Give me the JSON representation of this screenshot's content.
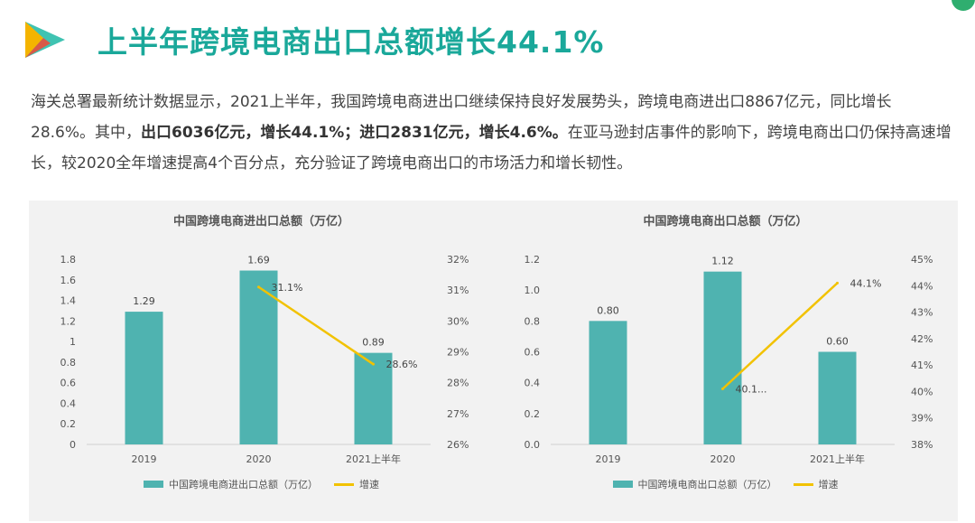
{
  "page": {
    "title": "上半年跨境电商出口总额增长44.1%",
    "paragraph": [
      {
        "text": "海关总署最新统计数据显示，2021上半年，我国跨境电商进出口继续保持良好发展势头，跨境电商进出口8867亿元，同比增长28.6%。其中，",
        "bold": false
      },
      {
        "text": "出口6036亿元，增长44.1%；进口2831亿元，增长4.6%。",
        "bold": true
      },
      {
        "text": "在亚马逊封店事件的影响下，跨境电商出口仍保持高速增长，较2020全年增速提高4个百分点，充分验证了跨境电商出口的市场活力和增长韧性。",
        "bold": false
      }
    ]
  },
  "colors": {
    "title": "#1aa89a",
    "bar": "#4fb3b0",
    "line": "#f2c200",
    "panel": "#f2f2f2"
  },
  "chart_data": [
    {
      "type": "bar",
      "title": "中国跨境电商进出口总额（万亿）",
      "categories": [
        "2019",
        "2020",
        "2021上半年"
      ],
      "series": [
        {
          "name": "中国跨境电商进出口总额（万亿）",
          "type": "bar",
          "axis": "left",
          "values": [
            1.29,
            1.69,
            0.89
          ],
          "labels": [
            "1.29",
            "1.69",
            "0.89"
          ]
        },
        {
          "name": "增速",
          "type": "line",
          "axis": "right",
          "values": [
            null,
            31.1,
            28.6
          ],
          "labels": [
            "",
            "31.1%",
            "28.6%"
          ]
        }
      ],
      "ylim": [
        0,
        1.8
      ],
      "yticks": [
        "0",
        "0.2",
        "0.4",
        "0.6",
        "0.8",
        "1",
        "1.2",
        "1.4",
        "1.6",
        "1.8"
      ],
      "y2lim": [
        26,
        32
      ],
      "y2ticks": [
        "26%",
        "27%",
        "28%",
        "29%",
        "30%",
        "31%",
        "32%"
      ],
      "legend": "bottom",
      "grid": false
    },
    {
      "type": "bar",
      "title": "中国跨境电商出口总额（万亿）",
      "categories": [
        "2019",
        "2020",
        "2021上半年"
      ],
      "series": [
        {
          "name": "中国跨境电商出口总额（万亿）",
          "type": "bar",
          "axis": "left",
          "values": [
            0.8,
            1.12,
            0.6
          ],
          "labels": [
            "0.80",
            "1.12",
            "0.60"
          ]
        },
        {
          "name": "增速",
          "type": "line",
          "axis": "right",
          "values": [
            null,
            40.1,
            44.1
          ],
          "labels": [
            "",
            "40.1...",
            "44.1%"
          ]
        }
      ],
      "ylim": [
        0,
        1.2
      ],
      "yticks": [
        "0.0",
        "0.2",
        "0.4",
        "0.6",
        "0.8",
        "1.0",
        "1.2"
      ],
      "y2lim": [
        38,
        45
      ],
      "y2ticks": [
        "38%",
        "39%",
        "40%",
        "41%",
        "42%",
        "43%",
        "44%",
        "45%"
      ],
      "legend": "bottom",
      "grid": false
    }
  ]
}
